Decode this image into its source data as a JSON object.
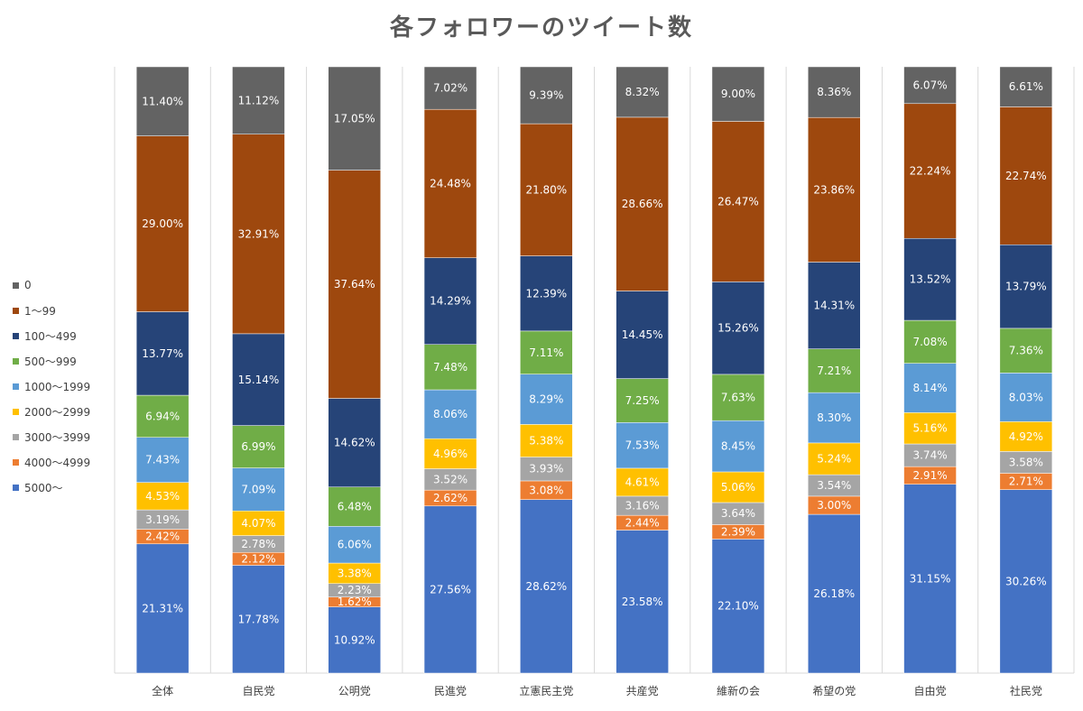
{
  "chart_data": {
    "type": "bar",
    "stacked": true,
    "title": "各フォロワーのツイート数",
    "legend_position": "left",
    "grid": false,
    "categories": [
      "全体",
      "自民党",
      "公明党",
      "民進党",
      "立憲民主党",
      "共産党",
      "維新の会",
      "希望の党",
      "自由党",
      "社民党"
    ],
    "series": [
      {
        "name": "5000〜",
        "color": "#4472C4",
        "values": [
          21.31,
          17.78,
          10.92,
          27.56,
          28.62,
          23.58,
          22.1,
          26.18,
          31.15,
          30.26
        ],
        "labels": [
          "21.31%",
          "17.78%",
          "10.92%",
          "27.56%",
          "28.62%",
          "23.58%",
          "22.10%",
          "26.18%",
          "31.15%",
          "30.26%"
        ]
      },
      {
        "name": "4000〜4999",
        "color": "#ED7D31",
        "values": [
          2.42,
          2.12,
          1.62,
          2.62,
          3.08,
          2.44,
          2.39,
          3.0,
          2.91,
          2.71
        ],
        "labels": [
          "2.42%",
          "2.12%",
          "1.62%",
          "2.62%",
          "3.08%",
          "2.44%",
          "2.39%",
          "3.00%",
          "2.91%",
          "2.71%"
        ]
      },
      {
        "name": "3000〜3999",
        "color": "#A5A5A5",
        "values": [
          3.19,
          2.78,
          2.23,
          3.52,
          3.93,
          3.16,
          3.64,
          3.54,
          3.74,
          3.58
        ],
        "labels": [
          "3.19%",
          "2.78%",
          "2.23%",
          "3.52%",
          "3.93%",
          "3.16%",
          "3.64%",
          "3.54%",
          "3.74%",
          "3.58%"
        ]
      },
      {
        "name": "2000〜2999",
        "color": "#FFC000",
        "values": [
          4.53,
          4.07,
          3.38,
          4.96,
          5.38,
          4.61,
          5.06,
          5.24,
          5.16,
          4.92
        ],
        "labels": [
          "4.53%",
          "4.07%",
          "3.38%",
          "4.96%",
          "5.38%",
          "4.61%",
          "5.06%",
          "5.24%",
          "5.16%",
          "4.92%"
        ]
      },
      {
        "name": "1000〜1999",
        "color": "#5B9BD5",
        "values": [
          7.43,
          7.09,
          6.06,
          8.06,
          8.29,
          7.53,
          8.45,
          8.3,
          8.14,
          8.03
        ],
        "labels": [
          "7.43%",
          "7.09%",
          "6.06%",
          "8.06%",
          "8.29%",
          "7.53%",
          "8.45%",
          "8.30%",
          "8.14%",
          "8.03%"
        ]
      },
      {
        "name": "500〜999",
        "color": "#70AD47",
        "values": [
          6.94,
          6.99,
          6.48,
          7.48,
          7.11,
          7.25,
          7.63,
          7.21,
          7.08,
          7.36
        ],
        "labels": [
          "6.94%",
          "6.99%",
          "6.48%",
          "7.48%",
          "7.11%",
          "7.25%",
          "7.63%",
          "7.21%",
          "7.08%",
          "7.36%"
        ]
      },
      {
        "name": "100〜499",
        "color": "#264478",
        "values": [
          13.77,
          15.14,
          14.62,
          14.29,
          12.39,
          14.45,
          15.26,
          14.31,
          13.52,
          13.79
        ],
        "labels": [
          "13.77%",
          "15.14%",
          "14.62%",
          "14.29%",
          "12.39%",
          "14.45%",
          "15.26%",
          "14.31%",
          "13.52%",
          "13.79%"
        ]
      },
      {
        "name": "1〜99",
        "color": "#9E480E",
        "values": [
          29.0,
          32.91,
          37.64,
          24.48,
          21.8,
          28.66,
          26.47,
          23.86,
          22.24,
          22.74
        ],
        "labels": [
          "29.00%",
          "32.91%",
          "37.64%",
          "24.48%",
          "21.80%",
          "28.66%",
          "26.47%",
          "23.86%",
          "22.24%",
          "22.74%"
        ]
      },
      {
        "name": "0",
        "color": "#636363",
        "values": [
          11.4,
          11.12,
          17.05,
          7.02,
          9.39,
          8.32,
          9.0,
          8.36,
          6.07,
          6.61
        ],
        "labels": [
          "11.40%",
          "11.12%",
          "17.05%",
          "7.02%",
          "9.39%",
          "8.32%",
          "9.00%",
          "8.36%",
          "6.07%",
          "6.61%"
        ]
      }
    ]
  }
}
